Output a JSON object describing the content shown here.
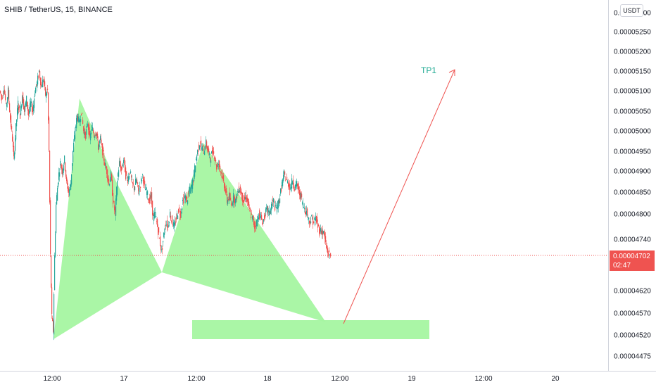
{
  "header": {
    "symbol_title": "SHIB / TetherUS, 15, BINANCE",
    "currency_label": "USDT"
  },
  "price_badge": {
    "price": "0.00004702",
    "countdown": "02:47"
  },
  "colors": {
    "up": "#26a69a",
    "down": "#ef5350",
    "pattern_fill": "#a5f5a1",
    "arrow": "#ef5350",
    "tp_label": "#22ab94",
    "axis_border": "#d1d4dc"
  },
  "chart_data": {
    "type": "candlestick",
    "y_axis_ticks": [
      "0.00005300",
      "0.00005250",
      "0.00005200",
      "0.00005150",
      "0.00005100",
      "0.00005050",
      "0.00005000",
      "0.00004950",
      "0.00004900",
      "0.00004850",
      "0.00004800",
      "0.00004740",
      "0.00004620",
      "0.00004570",
      "0.00004520",
      "0.00004475"
    ],
    "x_axis_ticks": [
      "12:00",
      "17",
      "12:00",
      "18",
      "12:00",
      "19",
      "12:00",
      "20"
    ],
    "current_price": 4.702e-05,
    "price_path": [
      [
        0,
        5.1e-05
      ],
      [
        3,
        5.08e-05
      ],
      [
        6,
        5.11e-05
      ],
      [
        9,
        5.06e-05
      ],
      [
        12,
        5.1e-05
      ],
      [
        15,
        5.03e-05
      ],
      [
        18,
        4.98e-05
      ],
      [
        20,
        4.93e-05
      ],
      [
        23,
        5.01e-05
      ],
      [
        26,
        5.07e-05
      ],
      [
        29,
        5.04e-05
      ],
      [
        32,
        5.09e-05
      ],
      [
        35,
        5.05e-05
      ],
      [
        38,
        5.08e-05
      ],
      [
        41,
        5.04e-05
      ],
      [
        44,
        5.07e-05
      ],
      [
        47,
        5.05e-05
      ],
      [
        50,
        5.1e-05
      ],
      [
        53,
        5.12e-05
      ],
      [
        56,
        5.15e-05
      ],
      [
        59,
        5.11e-05
      ],
      [
        62,
        5.13e-05
      ],
      [
        65,
        5.09e-05
      ],
      [
        68,
        5.1e-05
      ],
      [
        70,
        4.95e-05
      ],
      [
        72,
        4.7e-05
      ],
      [
        74,
        4.56e-05
      ],
      [
        76,
        4.53e-05
      ],
      [
        78,
        4.7e-05
      ],
      [
        80,
        4.82e-05
      ],
      [
        83,
        4.88e-05
      ],
      [
        86,
        4.92e-05
      ],
      [
        89,
        4.9e-05
      ],
      [
        92,
        4.93e-05
      ],
      [
        95,
        4.87e-05
      ],
      [
        98,
        4.85e-05
      ],
      [
        101,
        4.87e-05
      ],
      [
        104,
        4.95e-05
      ],
      [
        107,
        5e-05
      ],
      [
        110,
        5.04e-05
      ],
      [
        113,
        5.02e-05
      ],
      [
        116,
        5.05e-05
      ],
      [
        119,
        5e-05
      ],
      [
        122,
        4.99e-05
      ],
      [
        125,
        5.02e-05
      ],
      [
        128,
        4.98e-05
      ],
      [
        131,
        5.01e-05
      ],
      [
        134,
        4.99e-05
      ],
      [
        137,
        5e-05
      ],
      [
        140,
        4.96e-05
      ],
      [
        143,
        4.98e-05
      ],
      [
        146,
        4.95e-05
      ],
      [
        149,
        4.92e-05
      ],
      [
        152,
        4.9e-05
      ],
      [
        155,
        4.87e-05
      ],
      [
        158,
        4.89e-05
      ],
      [
        161,
        4.83e-05
      ],
      [
        164,
        4.8e-05
      ],
      [
        167,
        4.88e-05
      ],
      [
        170,
        4.92e-05
      ],
      [
        173,
        4.9e-05
      ],
      [
        176,
        4.93e-05
      ],
      [
        179,
        4.89e-05
      ],
      [
        182,
        4.88e-05
      ],
      [
        185,
        4.9e-05
      ],
      [
        188,
        4.87e-05
      ],
      [
        191,
        4.86e-05
      ],
      [
        194,
        4.88e-05
      ],
      [
        197,
        4.85e-05
      ],
      [
        200,
        4.87e-05
      ],
      [
        203,
        4.89e-05
      ],
      [
        206,
        4.86e-05
      ],
      [
        209,
        4.85e-05
      ],
      [
        212,
        4.83e-05
      ],
      [
        215,
        4.84e-05
      ],
      [
        218,
        4.79e-05
      ],
      [
        221,
        4.8e-05
      ],
      [
        224,
        4.77e-05
      ],
      [
        227,
        4.74e-05
      ],
      [
        230,
        4.71e-05
      ],
      [
        233,
        4.75e-05
      ],
      [
        236,
        4.78e-05
      ],
      [
        239,
        4.77e-05
      ],
      [
        242,
        4.8e-05
      ],
      [
        245,
        4.78e-05
      ],
      [
        248,
        4.77e-05
      ],
      [
        251,
        4.79e-05
      ],
      [
        254,
        4.81e-05
      ],
      [
        257,
        4.8e-05
      ],
      [
        260,
        4.83e-05
      ],
      [
        263,
        4.84e-05
      ],
      [
        266,
        4.83e-05
      ],
      [
        269,
        4.85e-05
      ],
      [
        272,
        4.86e-05
      ],
      [
        275,
        4.88e-05
      ],
      [
        278,
        4.92e-05
      ],
      [
        281,
        4.95e-05
      ],
      [
        284,
        4.97e-05
      ],
      [
        287,
        4.96e-05
      ],
      [
        290,
        4.95e-05
      ],
      [
        293,
        4.97e-05
      ],
      [
        296,
        4.95e-05
      ],
      [
        299,
        4.93e-05
      ],
      [
        302,
        4.95e-05
      ],
      [
        305,
        4.94e-05
      ],
      [
        308,
        4.91e-05
      ],
      [
        311,
        4.92e-05
      ],
      [
        314,
        4.9e-05
      ],
      [
        317,
        4.88e-05
      ],
      [
        320,
        4.86e-05
      ],
      [
        323,
        4.83e-05
      ],
      [
        326,
        4.84e-05
      ],
      [
        329,
        4.82e-05
      ],
      [
        332,
        4.84e-05
      ],
      [
        335,
        4.83e-05
      ],
      [
        338,
        4.85e-05
      ],
      [
        341,
        4.86e-05
      ],
      [
        344,
        4.84e-05
      ],
      [
        347,
        4.83e-05
      ],
      [
        350,
        4.84e-05
      ],
      [
        353,
        4.82e-05
      ],
      [
        356,
        4.8e-05
      ],
      [
        359,
        4.79e-05
      ],
      [
        362,
        4.77e-05
      ],
      [
        365,
        4.78e-05
      ],
      [
        368,
        4.8e-05
      ],
      [
        371,
        4.79e-05
      ],
      [
        374,
        4.78e-05
      ],
      [
        377,
        4.8e-05
      ],
      [
        380,
        4.81e-05
      ],
      [
        383,
        4.8e-05
      ],
      [
        386,
        4.82e-05
      ],
      [
        389,
        4.83e-05
      ],
      [
        392,
        4.81e-05
      ],
      [
        395,
        4.82e-05
      ],
      [
        398,
        4.84e-05
      ],
      [
        401,
        4.87e-05
      ],
      [
        404,
        4.89e-05
      ],
      [
        407,
        4.88e-05
      ],
      [
        410,
        4.87e-05
      ],
      [
        413,
        4.86e-05
      ],
      [
        416,
        4.88e-05
      ],
      [
        419,
        4.86e-05
      ],
      [
        422,
        4.87e-05
      ],
      [
        425,
        4.85e-05
      ],
      [
        428,
        4.84e-05
      ],
      [
        431,
        4.82e-05
      ],
      [
        434,
        4.81e-05
      ],
      [
        437,
        4.8e-05
      ],
      [
        440,
        4.78e-05
      ],
      [
        443,
        4.79e-05
      ],
      [
        446,
        4.78e-05
      ],
      [
        449,
        4.79e-05
      ],
      [
        452,
        4.77e-05
      ],
      [
        455,
        4.76e-05
      ],
      [
        458,
        4.76e-05
      ],
      [
        461,
        4.75e-05
      ],
      [
        464,
        4.72e-05
      ],
      [
        467,
        4.705e-05
      ],
      [
        470,
        4.702e-05
      ]
    ],
    "annotations": {
      "tp_label": "TP1"
    }
  }
}
